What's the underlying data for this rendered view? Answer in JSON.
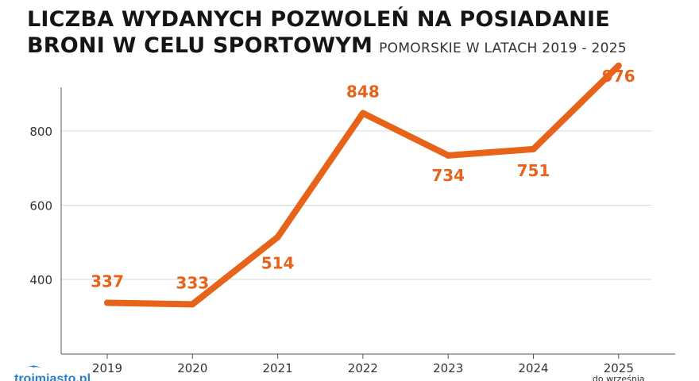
{
  "title_line1": "LICZBA WYDANYCH POZWOLEŃ NA POSIADANIE",
  "title_line2": "BRONI W CELU SPORTOWYM",
  "subtitle": "POMORSKIE W LATACH 2019 - 2025",
  "colors": {
    "line": "#e8631a",
    "label": "#e8631a",
    "grid": "#d9d9d9",
    "axis": "#555555"
  },
  "logo_text": "trojmiasto.pl",
  "chart_data": {
    "type": "line",
    "title": "LICZBA WYDANYCH POZWOLEŃ NA POSIADANIE BRONI W CELU SPORTOWYM",
    "subtitle": "POMORSKIE W LATACH 2019 - 2025",
    "categories": [
      "2019",
      "2020",
      "2021",
      "2022",
      "2023",
      "2024",
      "2025"
    ],
    "category_notes": [
      "",
      "",
      "",
      "",
      "",
      "",
      "do września"
    ],
    "values": [
      337,
      333,
      514,
      848,
      734,
      751,
      976
    ],
    "data_labels": [
      "337",
      "333",
      "514",
      "848",
      "734",
      "751",
      "976"
    ],
    "yticks": [
      400,
      600,
      800
    ],
    "ylim": [
      310,
      920
    ],
    "grid": true,
    "xlabel": "",
    "ylabel": ""
  }
}
